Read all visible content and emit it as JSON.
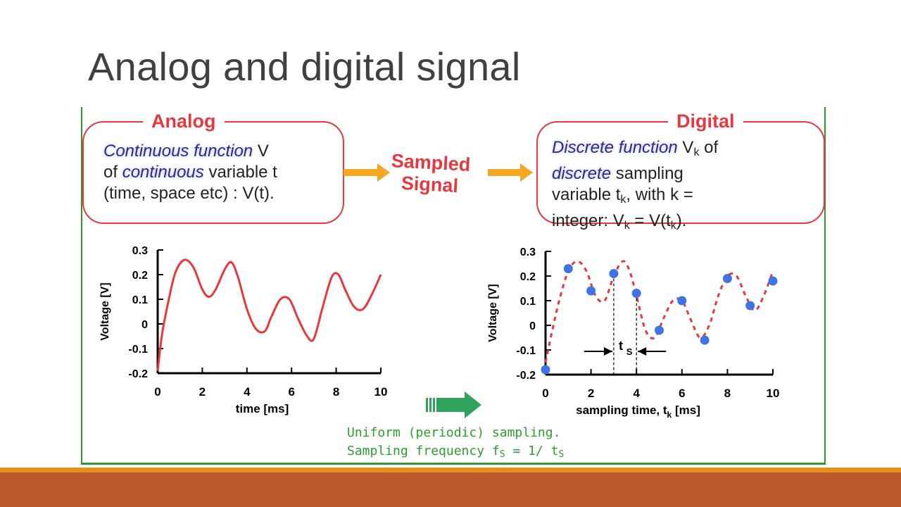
{
  "slide": {
    "title": "Analog and digital signal"
  },
  "analog_box": {
    "title": "Analog",
    "l1_hl": "Continuous function",
    "l1_rest": " V",
    "l2_a": "of ",
    "l2_hl": "continuous",
    "l2_rest": " variable t",
    "l3": "(time, space etc) : V(t)."
  },
  "sampled_label": {
    "line1": "Sampled",
    "line2": "Signal"
  },
  "digital_box": {
    "title": "Digital",
    "l1_hl": "Discrete function",
    "l1_a": " V",
    "l1_sub": "k",
    "l1_b": " of",
    "l2_hl": "discrete",
    "l2_rest": " sampling",
    "l3_a": "variable t",
    "l3_sub": "k",
    "l3_b": ", with k =",
    "l4_a": "integer: V",
    "l4_sub1": "k",
    "l4_b": " = V(t",
    "l4_sub2": "k",
    "l4_c": ")."
  },
  "caption": {
    "line1": "Uniform (periodic) sampling.",
    "line2_a": "Sampling frequency f",
    "line2_sub1": "S",
    "line2_b": " = 1/ t",
    "line2_sub2": "S"
  },
  "colors": {
    "red": "#e8373d",
    "blue": "#3f73e6",
    "green": "#2d9e2d",
    "orange": "#f5a623"
  },
  "chart_data": [
    {
      "type": "line",
      "ylabel": "Voltage [V]",
      "xlabel": "time [ms]",
      "xlim": [
        0,
        10
      ],
      "ylim": [
        -0.2,
        0.3
      ],
      "xticks": [
        0,
        2,
        4,
        6,
        8,
        10
      ],
      "yticks": [
        0.3,
        0.2,
        0.1,
        0,
        -0.1,
        -0.2
      ],
      "ytick_labels": [
        "0.3",
        "0.2",
        "0.1",
        "0",
        "-0.1",
        "-0.2"
      ],
      "series": [
        {
          "x": [
            0,
            0.2,
            0.5,
            0.8,
            1.2,
            1.6,
            2,
            2.3,
            2.6,
            3,
            3.3,
            3.6,
            4,
            4.4,
            4.8,
            5.1,
            5.5,
            5.9,
            6.3,
            6.7,
            7,
            7.4,
            7.8,
            8.1,
            8.4,
            8.8,
            9.2,
            9.6,
            10
          ],
          "y": [
            -0.19,
            -0.04,
            0.1,
            0.21,
            0.26,
            0.23,
            0.14,
            0.11,
            0.14,
            0.22,
            0.25,
            0.19,
            0.06,
            -0.02,
            -0.03,
            0.03,
            0.1,
            0.1,
            0.02,
            -0.05,
            -0.06,
            0.07,
            0.19,
            0.2,
            0.14,
            0.07,
            0.06,
            0.12,
            0.2
          ]
        }
      ]
    },
    {
      "type": "scatter",
      "ylabel": "Voltage [V]",
      "xlabel_a": "sampling time, t",
      "xlabel_sub": "k",
      "xlabel_b": " [ms]",
      "xlim": [
        0,
        10
      ],
      "ylim": [
        -0.2,
        0.3
      ],
      "xticks": [
        0,
        2,
        4,
        6,
        8,
        10
      ],
      "yticks": [
        0.3,
        0.2,
        0.1,
        0,
        -0.1,
        -0.2
      ],
      "ytick_labels": [
        "0.3",
        "0.2",
        "0.1",
        "0",
        "-0.1",
        "-0.2"
      ],
      "samples": {
        "x": [
          0,
          1,
          2,
          3,
          4,
          5,
          6,
          7,
          8,
          9,
          10
        ],
        "y": [
          -0.18,
          0.23,
          0.14,
          0.21,
          0.13,
          -0.02,
          0.1,
          -0.06,
          0.19,
          0.08,
          0.18
        ]
      },
      "dashed_curve": {
        "x": [
          0,
          0.3,
          0.6,
          1,
          1.4,
          1.8,
          2.2,
          2.6,
          3,
          3.4,
          3.7,
          4,
          4.4,
          4.8,
          5.2,
          5.6,
          6,
          6.4,
          6.8,
          7.2,
          7.6,
          8,
          8.4,
          8.8,
          9.2,
          9.6,
          10
        ],
        "y": [
          -0.15,
          -0.02,
          0.1,
          0.22,
          0.26,
          0.22,
          0.12,
          0.1,
          0.2,
          0.26,
          0.22,
          0.12,
          -0.02,
          -0.05,
          0.03,
          0.1,
          0.1,
          0.02,
          -0.05,
          0.0,
          0.12,
          0.2,
          0.2,
          0.12,
          0.06,
          0.12,
          0.22
        ]
      },
      "annotation": {
        "label": "t",
        "label_sub": "S",
        "from_x": 3,
        "to_x": 4
      }
    }
  ]
}
